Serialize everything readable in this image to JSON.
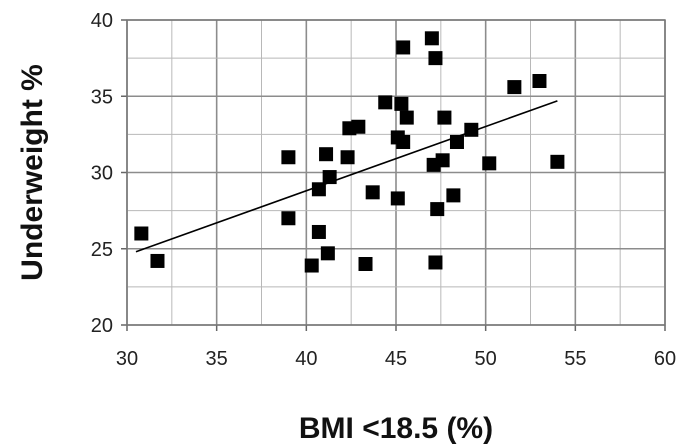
{
  "chart_data": {
    "type": "scatter",
    "title": "",
    "xlabel": "BMI <18.5 (%)",
    "ylabel": "Underweight %",
    "xlim": [
      30,
      60
    ],
    "ylim": [
      20,
      40
    ],
    "xticks": [
      30,
      35,
      40,
      45,
      50,
      55,
      60
    ],
    "yticks": [
      20,
      25,
      30,
      35,
      40
    ],
    "grid": true,
    "marker": "square",
    "marker_color": "#000000",
    "trendline": {
      "type": "linear",
      "x": [
        30.5,
        54.0
      ],
      "y": [
        24.8,
        34.7
      ]
    },
    "points": [
      {
        "x": 30.8,
        "y": 26.0
      },
      {
        "x": 31.7,
        "y": 24.2
      },
      {
        "x": 39.0,
        "y": 31.0
      },
      {
        "x": 39.0,
        "y": 27.0
      },
      {
        "x": 40.3,
        "y": 23.9
      },
      {
        "x": 40.7,
        "y": 28.9
      },
      {
        "x": 40.7,
        "y": 26.1
      },
      {
        "x": 41.1,
        "y": 31.2
      },
      {
        "x": 41.2,
        "y": 24.7
      },
      {
        "x": 41.3,
        "y": 29.7
      },
      {
        "x": 42.3,
        "y": 31.0
      },
      {
        "x": 42.4,
        "y": 32.9
      },
      {
        "x": 42.9,
        "y": 33.0
      },
      {
        "x": 43.3,
        "y": 24.0
      },
      {
        "x": 43.7,
        "y": 28.7
      },
      {
        "x": 44.4,
        "y": 34.6
      },
      {
        "x": 45.1,
        "y": 32.3
      },
      {
        "x": 45.1,
        "y": 28.3
      },
      {
        "x": 45.3,
        "y": 34.5
      },
      {
        "x": 45.4,
        "y": 32.0
      },
      {
        "x": 45.4,
        "y": 38.2
      },
      {
        "x": 45.6,
        "y": 33.6
      },
      {
        "x": 47.0,
        "y": 38.8
      },
      {
        "x": 47.1,
        "y": 30.5
      },
      {
        "x": 47.2,
        "y": 37.5
      },
      {
        "x": 47.2,
        "y": 24.1
      },
      {
        "x": 47.3,
        "y": 27.6
      },
      {
        "x": 47.6,
        "y": 30.8
      },
      {
        "x": 47.7,
        "y": 33.6
      },
      {
        "x": 48.2,
        "y": 28.5
      },
      {
        "x": 48.4,
        "y": 32.0
      },
      {
        "x": 49.2,
        "y": 32.8
      },
      {
        "x": 50.2,
        "y": 30.6
      },
      {
        "x": 51.6,
        "y": 35.6
      },
      {
        "x": 53.0,
        "y": 36.0
      },
      {
        "x": 54.0,
        "y": 30.7
      }
    ]
  }
}
